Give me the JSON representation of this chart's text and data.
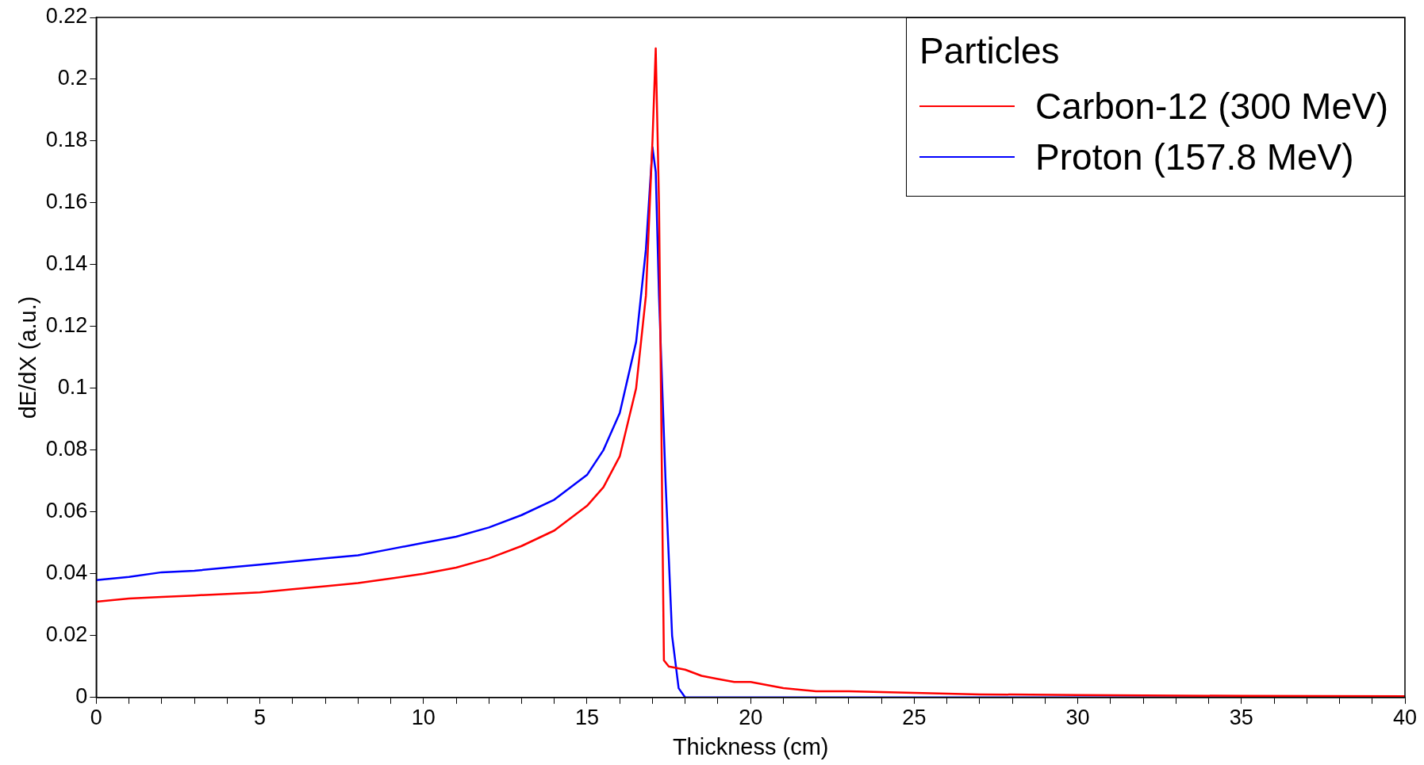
{
  "chart_data": {
    "type": "line",
    "xlabel": "Thickness (cm)",
    "ylabel": "dE/dX (a.u.)",
    "legend_title": "Particles",
    "legend": "top right",
    "grid": false,
    "marker": "none",
    "line_style": "solid",
    "xlim": [
      0,
      40
    ],
    "xticks": [
      0,
      {
        "value": 1,
        "label": null
      },
      {
        "value": 2,
        "label": null
      },
      {
        "value": 3,
        "label": null
      },
      {
        "value": 4,
        "label": null
      },
      5,
      {
        "value": 6,
        "label": null
      },
      {
        "value": 7,
        "label": null
      },
      {
        "value": 8,
        "label": null
      },
      {
        "value": 9,
        "label": null
      },
      10,
      {
        "value": 11,
        "label": null
      },
      {
        "value": 12,
        "label": null
      },
      {
        "value": 13,
        "label": null
      },
      {
        "value": 14,
        "label": null
      },
      15,
      {
        "value": 16,
        "label": null
      },
      {
        "value": 17,
        "label": null
      },
      {
        "value": 18,
        "label": null
      },
      {
        "value": 19,
        "label": null
      },
      20,
      {
        "value": 21,
        "label": null
      },
      {
        "value": 22,
        "label": null
      },
      {
        "value": 23,
        "label": null
      },
      {
        "value": 24,
        "label": null
      },
      25,
      {
        "value": 26,
        "label": null
      },
      {
        "value": 27,
        "label": null
      },
      {
        "value": 28,
        "label": null
      },
      {
        "value": 29,
        "label": null
      },
      30,
      {
        "value": 31,
        "label": null
      },
      {
        "value": 32,
        "label": null
      },
      {
        "value": 33,
        "label": null
      },
      {
        "value": 34,
        "label": null
      },
      35,
      {
        "value": 36,
        "label": null
      },
      {
        "value": 37,
        "label": null
      },
      {
        "value": 38,
        "label": null
      },
      {
        "value": 39,
        "label": null
      },
      40
    ],
    "ylim": [
      0,
      0.22
    ],
    "yticks": [
      0,
      0.02,
      0.04,
      0.06,
      0.08,
      0.1,
      0.12,
      0.14,
      0.16,
      0.18,
      0.2,
      0.22
    ],
    "series": [
      {
        "name": "Carbon-12 (300 MeV)",
        "color": "#ff0000",
        "x": [
          0,
          1,
          2,
          3,
          4,
          5,
          6,
          7,
          8,
          9,
          10,
          11,
          12,
          13,
          14,
          15,
          15.5,
          16,
          16.5,
          16.8,
          17,
          17.1,
          17.2,
          17.3,
          17.35,
          17.5,
          18,
          18.5,
          19,
          19.5,
          20,
          21,
          22,
          23,
          25,
          27,
          30,
          35,
          40
        ],
        "values": [
          0.031,
          0.032,
          0.0325,
          0.033,
          0.0335,
          0.034,
          0.035,
          0.036,
          0.037,
          0.0385,
          0.04,
          0.042,
          0.045,
          0.049,
          0.054,
          0.062,
          0.068,
          0.078,
          0.1,
          0.13,
          0.18,
          0.21,
          0.16,
          0.06,
          0.012,
          0.01,
          0.009,
          0.007,
          0.006,
          0.005,
          0.005,
          0.003,
          0.002,
          0.002,
          0.0015,
          0.001,
          0.0008,
          0.0005,
          0.0004
        ]
      },
      {
        "name": "Proton (157.8 MeV)",
        "color": "#0000ff",
        "x": [
          0,
          1,
          2,
          3,
          4,
          5,
          6,
          7,
          8,
          9,
          10,
          11,
          12,
          13,
          14,
          15,
          15.5,
          16,
          16.5,
          16.8,
          17,
          17.1,
          17.2,
          17.4,
          17.6,
          17.8,
          18,
          40
        ],
        "values": [
          0.038,
          0.039,
          0.0405,
          0.041,
          0.042,
          0.043,
          0.044,
          0.045,
          0.046,
          0.048,
          0.05,
          0.052,
          0.055,
          0.059,
          0.064,
          0.072,
          0.08,
          0.092,
          0.115,
          0.145,
          0.178,
          0.17,
          0.13,
          0.07,
          0.02,
          0.003,
          0,
          0
        ]
      }
    ]
  }
}
